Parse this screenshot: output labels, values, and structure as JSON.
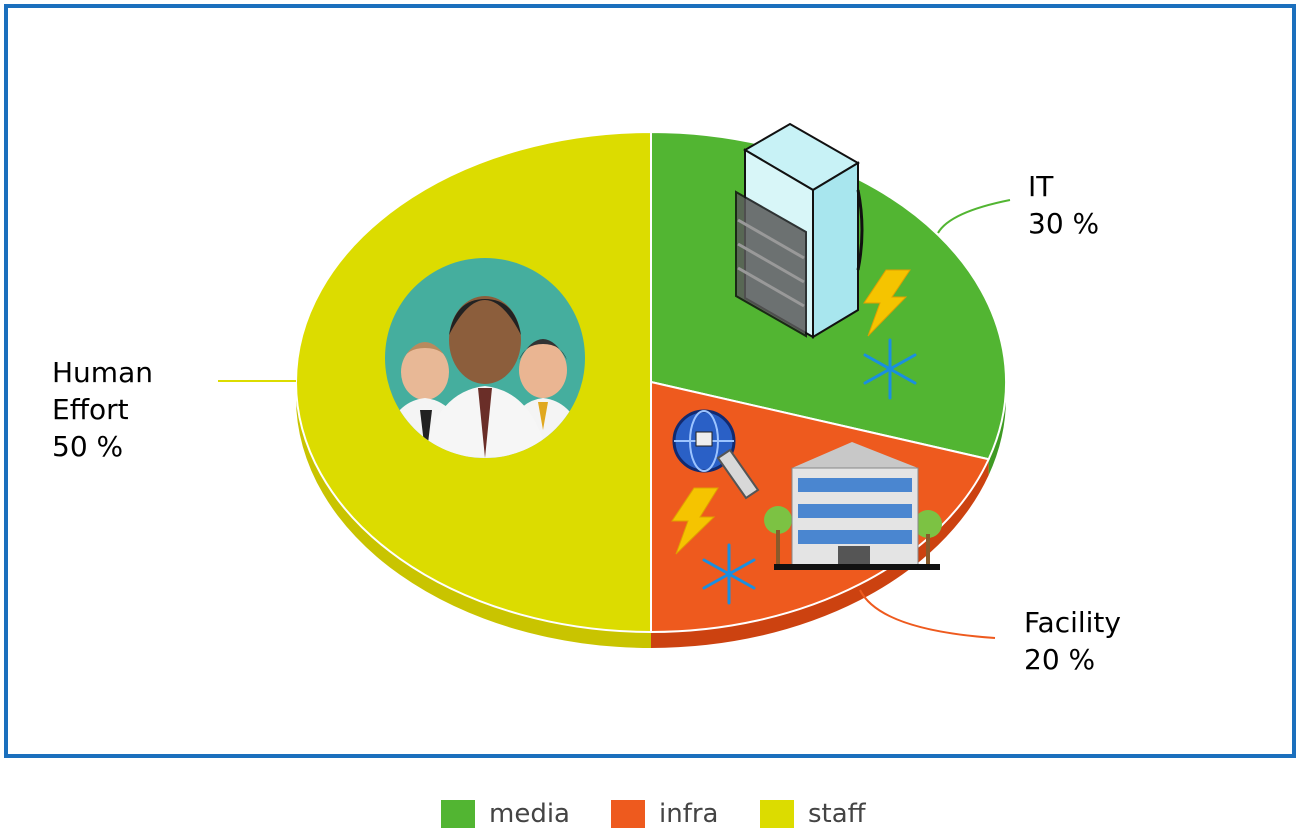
{
  "chart_data": {
    "type": "pie",
    "style": "3d",
    "slices": [
      {
        "key": "staff",
        "label_lines": [
          "Human",
          "Effort"
        ],
        "percent_text": "50 %",
        "value": 50,
        "color": "#dcdc00",
        "side_color": "#c9c400"
      },
      {
        "key": "media",
        "label_lines": [
          "IT"
        ],
        "percent_text": "30 %",
        "value": 30,
        "color": "#52b532",
        "side_color": "#3f9a24"
      },
      {
        "key": "infra",
        "label_lines": [
          "Facility"
        ],
        "percent_text": "20 %",
        "value": 20,
        "color": "#ee5a1e",
        "side_color": "#cc4210"
      }
    ],
    "legend": {
      "placement": "bottom",
      "items": [
        {
          "label": "media",
          "color": "#52b532"
        },
        {
          "label": "infra",
          "color": "#ee5a1e"
        },
        {
          "label": "staff",
          "color": "#dcdc00"
        }
      ]
    }
  },
  "icons": [
    "people-group-icon",
    "server-rack-icon",
    "lightning-icon",
    "snowflake-icon",
    "network-globe-icon",
    "office-building-icon"
  ]
}
